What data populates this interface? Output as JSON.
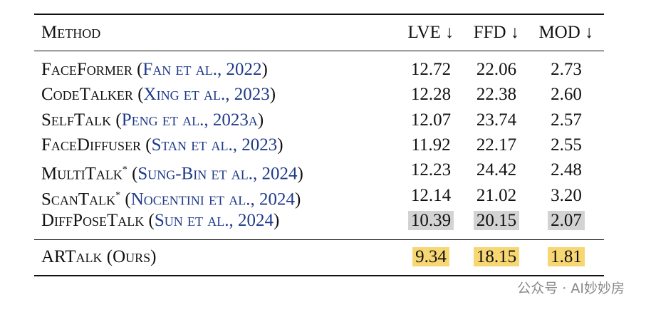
{
  "table": {
    "header": [
      "Method",
      "LVE ↓",
      "FFD ↓",
      "MOD ↓"
    ],
    "highlight_colors": {
      "second": "#d3d3d3",
      "best": "#f7d774"
    },
    "rows": [
      {
        "method": "FaceFormer",
        "cite": {
          "open": "(",
          "text": "Fan et al., 2022",
          "close": ")"
        },
        "values": [
          "12.72",
          "22.06",
          "2.73"
        ]
      },
      {
        "method": "CodeTalker",
        "cite": {
          "open": "(",
          "text": "Xing et al., 2023",
          "close": ")"
        },
        "values": [
          "12.28",
          "22.38",
          "2.60"
        ]
      },
      {
        "method": "SelfTalk",
        "cite": {
          "open": "(",
          "text": "Peng et al., 2023a",
          "close": ")"
        },
        "values": [
          "12.07",
          "23.74",
          "2.57"
        ]
      },
      {
        "method": "FaceDiffuser",
        "cite": {
          "open": "(",
          "text": "Stan et al., 2023",
          "close": ")"
        },
        "values": [
          "11.92",
          "22.17",
          "2.55"
        ]
      },
      {
        "method": "MultiTalk",
        "sup": "*",
        "cite": {
          "open": "(",
          "text": "Sung-Bin et al., 2024",
          "close": ")"
        },
        "values": [
          "12.23",
          "24.42",
          "2.48"
        ]
      },
      {
        "method": "ScanTalk",
        "sup": "*",
        "cite": {
          "open": "(",
          "text": "Nocentini et al., 2024",
          "close": ")"
        },
        "values": [
          "12.14",
          "21.02",
          "3.20"
        ]
      },
      {
        "method": "DiffPoseTalk",
        "cite": {
          "open": "(",
          "text": "Sun et al., 2024",
          "close": ")"
        },
        "values": [
          "10.39",
          "20.15",
          "2.07"
        ],
        "highlight": "second"
      },
      {
        "method": "ARTalk (Ours)",
        "values": [
          "9.34",
          "18.15",
          "1.81"
        ],
        "highlight": "best"
      }
    ]
  },
  "watermark": "公众号 · AI妙妙房"
}
